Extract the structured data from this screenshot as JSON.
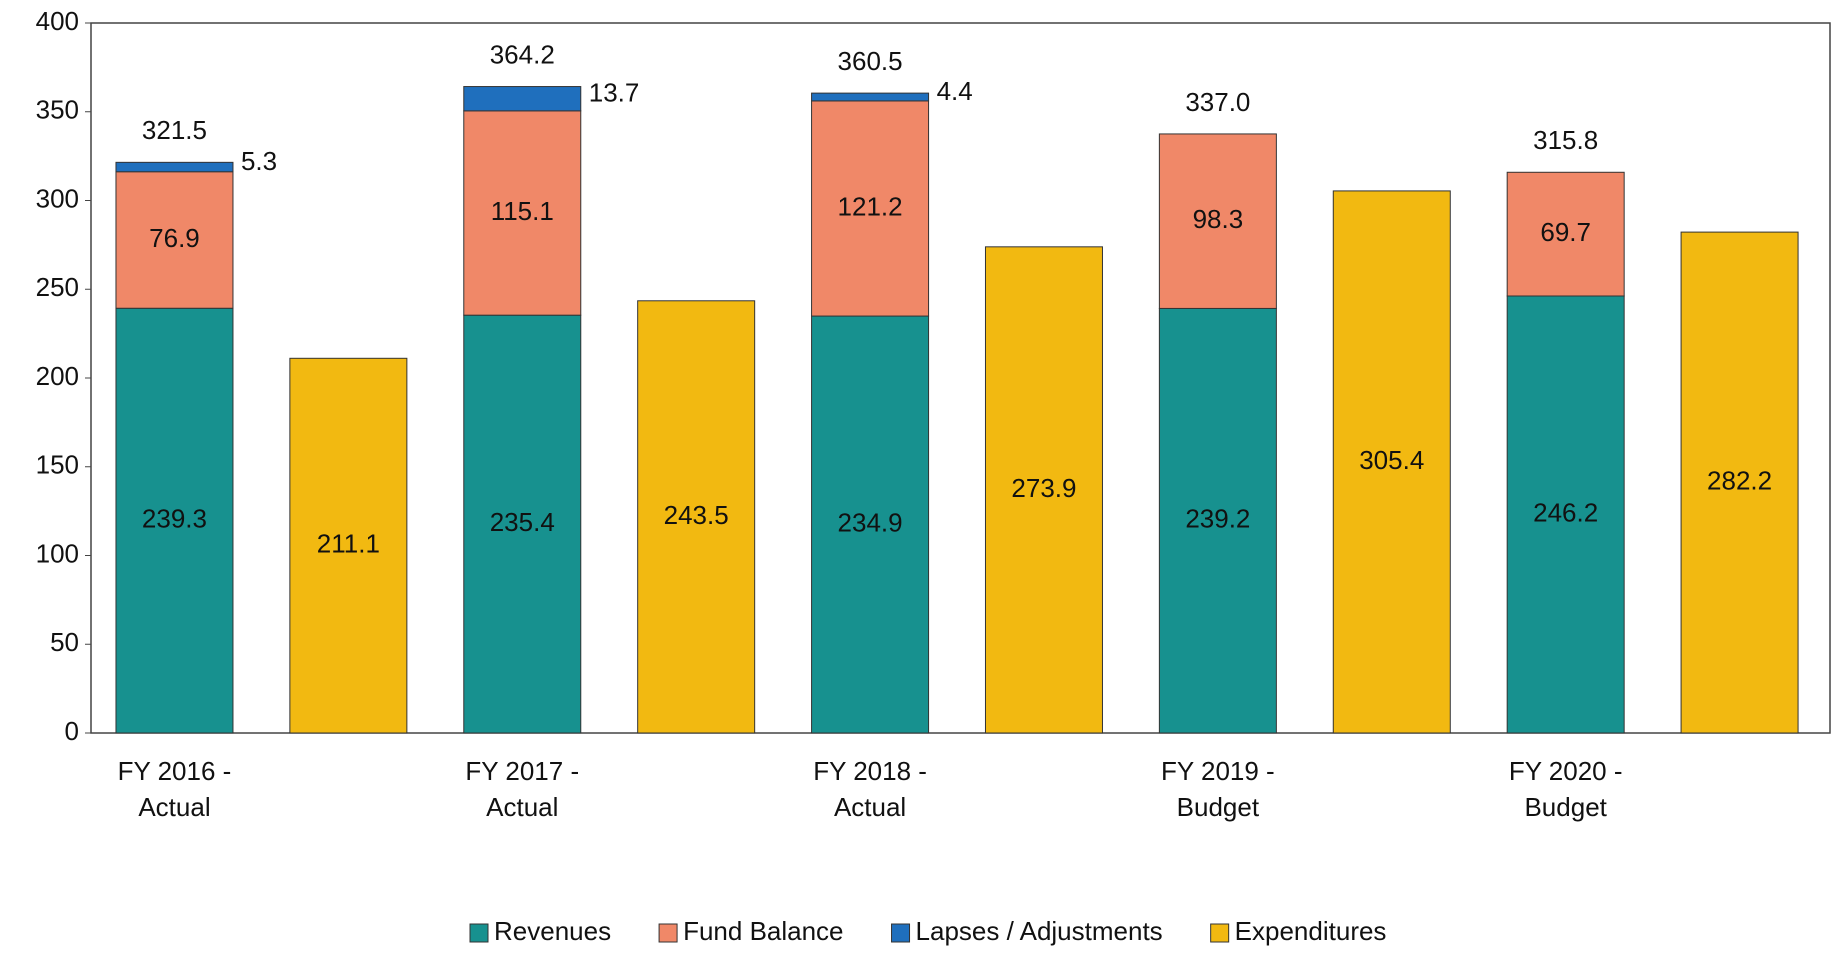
{
  "chart_data": {
    "type": "bar",
    "categories": [
      [
        "FY 2016 -",
        "Actual"
      ],
      [
        "FY 2017 -",
        "Actual"
      ],
      [
        "FY 2018 -",
        "Actual"
      ],
      [
        "FY 2019 -",
        "Budget"
      ],
      [
        "FY 2020 -",
        "Budget"
      ]
    ],
    "series": [
      {
        "name": "Revenues",
        "color": "#17918f",
        "stack": 1,
        "values": [
          239.3,
          235.4,
          234.9,
          239.2,
          246.2
        ]
      },
      {
        "name": "Fund Balance",
        "color": "#f08868",
        "stack": 1,
        "values": [
          76.9,
          115.1,
          121.2,
          98.3,
          69.7
        ]
      },
      {
        "name": "Lapses / Adjustments",
        "color": "#1f6fbd",
        "stack": 1,
        "values": [
          5.3,
          13.7,
          4.4,
          null,
          null
        ]
      },
      {
        "name": "Expenditures",
        "color": "#f2b911",
        "stack": 2,
        "values": [
          211.1,
          243.5,
          273.9,
          305.4,
          282.2
        ]
      }
    ],
    "totals": {
      "values": [
        321.5,
        364.2,
        360.5,
        337,
        315.8
      ],
      "value_labels": [
        "321.5",
        "364.2",
        "360.5",
        "337.0",
        "315.8"
      ]
    },
    "ylim": [
      0,
      400
    ],
    "yticks": [
      0,
      50,
      100,
      150,
      200,
      250,
      300,
      350,
      400
    ],
    "grid": false,
    "legend": "bottom"
  }
}
